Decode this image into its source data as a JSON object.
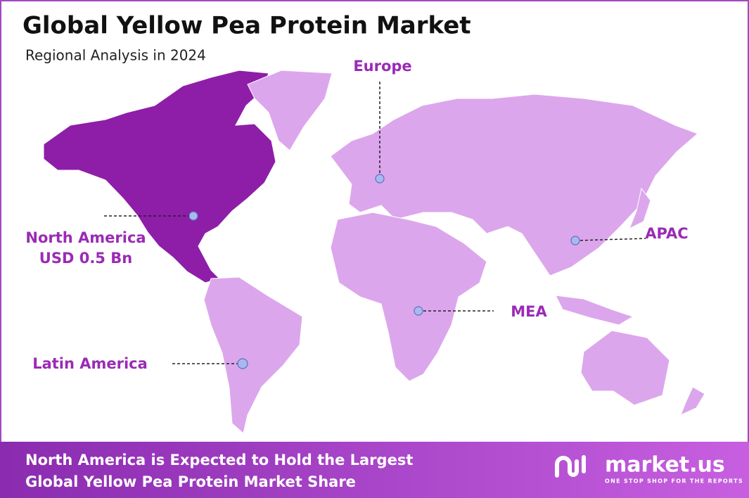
{
  "header": {
    "title": "Global Yellow Pea Protein Market",
    "subtitle": "Regional Analysis in 2024"
  },
  "regions": [
    {
      "label": "Europe"
    },
    {
      "label": "North America",
      "value": "USD 0.5 Bn"
    },
    {
      "label": "APAC"
    },
    {
      "label": "MEA"
    },
    {
      "label": "Latin America"
    }
  ],
  "footer": {
    "lines": [
      "North America is Expected to Hold the Largest",
      "Global Yellow Pea Protein Market Share"
    ]
  },
  "brand": {
    "name": "market.us",
    "tagline": "ONE STOP SHOP FOR THE REPORTS"
  }
}
